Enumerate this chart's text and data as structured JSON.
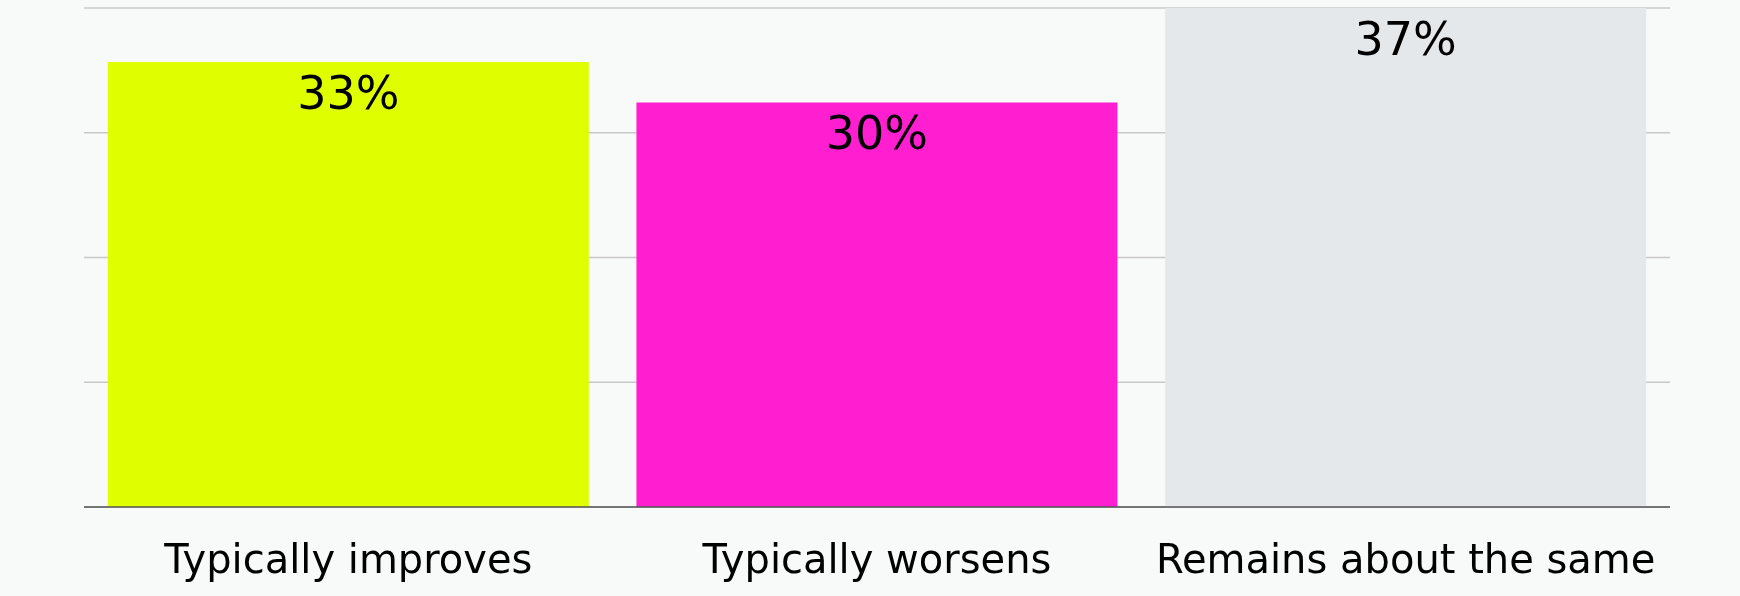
{
  "chart_data": {
    "type": "bar",
    "categories": [
      "Typically improves",
      "Typically worsens",
      "Remains about the same"
    ],
    "values": [
      33,
      30,
      37
    ],
    "colors": [
      "#dfff00",
      "#ff1fd1",
      "#e5e8eb"
    ],
    "value_labels": [
      "33%",
      "30%",
      "37%"
    ],
    "ylim": [
      0,
      37
    ],
    "grid": "y",
    "tick_labels": "x"
  }
}
